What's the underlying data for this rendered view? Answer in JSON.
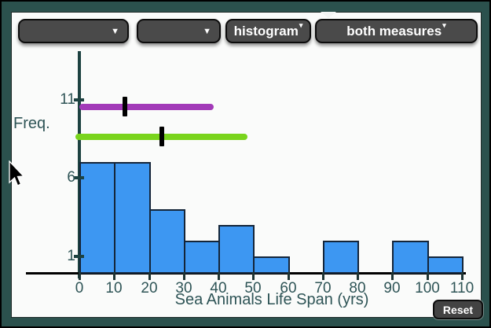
{
  "toolbar": {
    "dropdowns": [
      {
        "name": "dropdown-1",
        "value": ""
      },
      {
        "name": "dropdown-2",
        "value": ""
      }
    ],
    "buttons": [
      {
        "label": "histogram"
      },
      {
        "label": "both measures"
      }
    ]
  },
  "icons": {
    "dropdown_arrow": "▼",
    "button_caret": "▾"
  },
  "chart_data": {
    "type": "bar",
    "subtype": "histogram",
    "title": "",
    "xlabel": "Sea Animals Life Span (yrs)",
    "ylabel": "Freq.",
    "xlim": [
      0,
      110
    ],
    "ylim": [
      0,
      13
    ],
    "bin_width": 10,
    "categories": [
      0,
      10,
      20,
      30,
      40,
      50,
      60,
      70,
      80,
      90,
      100
    ],
    "values": [
      7,
      7,
      4,
      2,
      3,
      1,
      0,
      2,
      0,
      2,
      1
    ],
    "x_ticks": [
      0,
      10,
      20,
      30,
      40,
      50,
      60,
      70,
      80,
      90,
      100,
      110
    ],
    "y_ticks": [
      1,
      6,
      11
    ],
    "bar_color": "#3d97f2",
    "bar_border_color": "#142539",
    "grid": false,
    "overlays": [
      {
        "name": "purple-measure-bar",
        "color": "#a23ab8",
        "y": 10.55,
        "x_start": 0,
        "x_end": 38.6,
        "marker_x": 13.1
      },
      {
        "name": "green-measure-bar",
        "color": "#79d41c",
        "y": 8.64,
        "x_start": -1.1,
        "x_end": 48.3,
        "marker_x": 23.7
      }
    ]
  },
  "reset_button": {
    "label": "Reset"
  }
}
